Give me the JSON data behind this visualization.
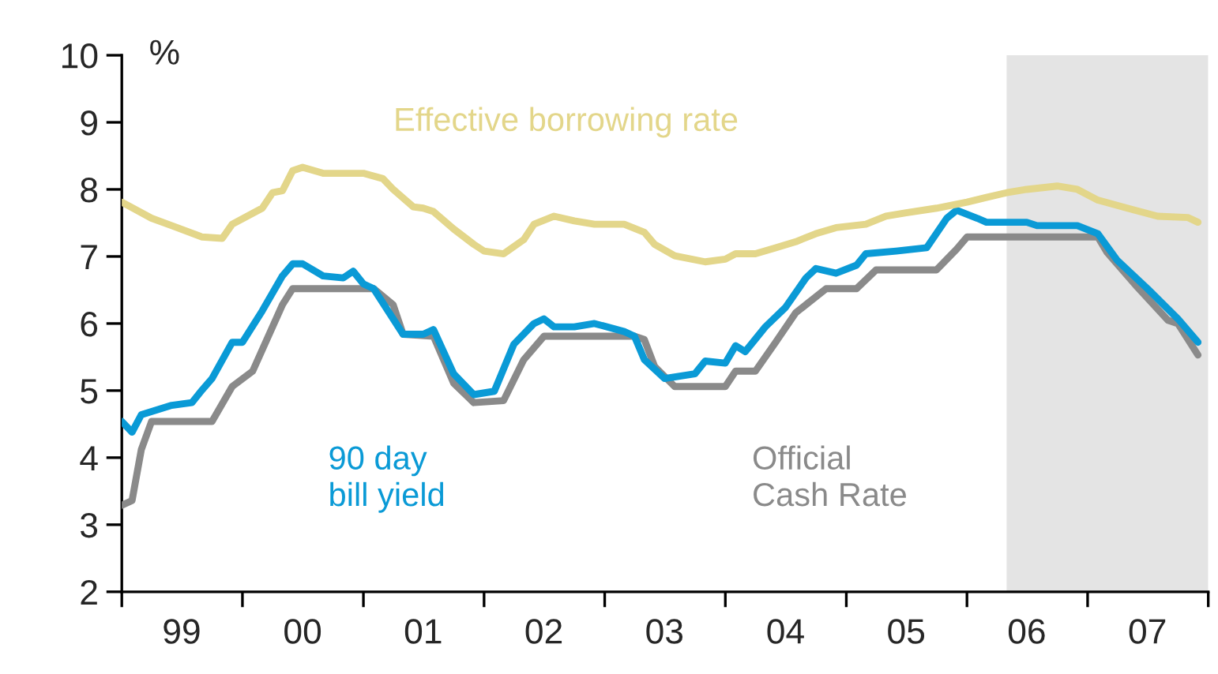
{
  "chart_data": {
    "type": "line",
    "ylabel": "%",
    "xlim": [
      "1999-01",
      "2008-01"
    ],
    "ylim": [
      2,
      10
    ],
    "yticks": [
      2,
      3,
      4,
      5,
      6,
      7,
      8,
      9,
      10
    ],
    "xticks": [
      {
        "value": "1999-01",
        "label": null
      },
      {
        "value": "2000-01",
        "label": null
      },
      {
        "value": "2001-01",
        "label": null
      },
      {
        "value": "2002-01",
        "label": null
      },
      {
        "value": "2003-01",
        "label": null
      },
      {
        "value": "2004-01",
        "label": null
      },
      {
        "value": "2005-01",
        "label": null
      },
      {
        "value": "2006-01",
        "label": null
      },
      {
        "value": "2007-01",
        "label": null
      },
      {
        "value": "2008-01",
        "label": null
      },
      {
        "value": "1999-07",
        "label": "99"
      },
      {
        "value": "2000-07",
        "label": "00"
      },
      {
        "value": "2001-07",
        "label": "01"
      },
      {
        "value": "2002-07",
        "label": "02"
      },
      {
        "value": "2003-07",
        "label": "03"
      },
      {
        "value": "2004-07",
        "label": "04"
      },
      {
        "value": "2005-07",
        "label": "05"
      },
      {
        "value": "2006-07",
        "label": "06"
      },
      {
        "value": "2007-07",
        "label": "07"
      }
    ],
    "grid": false,
    "legend": false,
    "marker": "none",
    "line_style": "solid",
    "bands": [
      {
        "axis": "x",
        "from": "2006-05",
        "to": "2008-01",
        "label": null,
        "color": "#e4e4e4"
      }
    ],
    "series": [
      {
        "name": "Effective borrowing rate",
        "color": "#e3d68a",
        "x": [
          "1999-01",
          "1999-04",
          "1999-06",
          "1999-09",
          "1999-11",
          "1999-12",
          "2000-03",
          "2000-04",
          "2000-05",
          "2000-06",
          "2000-07",
          "2000-09",
          "2001-01",
          "2001-03",
          "2001-04",
          "2001-06",
          "2001-07",
          "2001-08",
          "2001-10",
          "2001-12",
          "2002-01",
          "2002-03",
          "2002-05",
          "2002-06",
          "2002-08",
          "2002-10",
          "2002-12",
          "2003-03",
          "2003-05",
          "2003-06",
          "2003-08",
          "2003-11",
          "2004-01",
          "2004-02",
          "2004-04",
          "2004-06",
          "2004-08",
          "2004-10",
          "2004-12",
          "2005-03",
          "2005-05",
          "2005-07",
          "2005-10",
          "2006-01",
          "2006-03",
          "2006-05",
          "2006-07",
          "2006-10",
          "2006-12",
          "2007-02",
          "2007-05",
          "2007-08",
          "2007-11",
          "2007-12"
        ],
        "values": [
          7.81,
          7.57,
          7.46,
          7.29,
          7.27,
          7.48,
          7.72,
          7.95,
          7.98,
          8.28,
          8.33,
          8.24,
          8.24,
          8.16,
          8.0,
          7.74,
          7.72,
          7.67,
          7.41,
          7.18,
          7.08,
          7.04,
          7.25,
          7.48,
          7.6,
          7.53,
          7.48,
          7.48,
          7.36,
          7.18,
          7.01,
          6.92,
          6.96,
          7.04,
          7.04,
          7.13,
          7.22,
          7.34,
          7.43,
          7.48,
          7.6,
          7.65,
          7.72,
          7.81,
          7.88,
          7.95,
          8.0,
          8.05,
          8.0,
          7.84,
          7.72,
          7.6,
          7.58,
          7.51
        ]
      },
      {
        "name": "90 day\nbill yield",
        "color": "#0a9ad6",
        "x": [
          "1999-01",
          "1999-02",
          "1999-03",
          "1999-06",
          "1999-08",
          "1999-09",
          "1999-10",
          "1999-12",
          "2000-01",
          "2000-03",
          "2000-05",
          "2000-06",
          "2000-07",
          "2000-09",
          "2000-11",
          "2000-12",
          "2001-01",
          "2001-02",
          "2001-05",
          "2001-07",
          "2001-08",
          "2001-10",
          "2001-12",
          "2002-02",
          "2002-04",
          "2002-06",
          "2002-07",
          "2002-08",
          "2002-10",
          "2002-12",
          "2003-03",
          "2003-04",
          "2003-05",
          "2003-07",
          "2003-10",
          "2003-11",
          "2004-01",
          "2004-02",
          "2004-03",
          "2004-05",
          "2004-07",
          "2004-09",
          "2004-10",
          "2004-12",
          "2005-02",
          "2005-03",
          "2005-06",
          "2005-09",
          "2005-11",
          "2005-12",
          "2006-02",
          "2006-03",
          "2006-07",
          "2006-08",
          "2006-12",
          "2007-02",
          "2007-04",
          "2007-07",
          "2007-10",
          "2007-12"
        ],
        "values": [
          4.54,
          4.38,
          4.64,
          4.78,
          4.82,
          5.01,
          5.18,
          5.72,
          5.72,
          6.19,
          6.71,
          6.89,
          6.89,
          6.71,
          6.68,
          6.78,
          6.59,
          6.52,
          5.84,
          5.84,
          5.91,
          5.25,
          4.94,
          4.99,
          5.69,
          6.0,
          6.07,
          5.95,
          5.95,
          6.0,
          5.88,
          5.81,
          5.46,
          5.18,
          5.25,
          5.44,
          5.41,
          5.67,
          5.58,
          5.95,
          6.24,
          6.68,
          6.82,
          6.75,
          6.87,
          7.04,
          7.08,
          7.13,
          7.57,
          7.69,
          7.57,
          7.51,
          7.51,
          7.46,
          7.46,
          7.34,
          6.94,
          6.52,
          6.07,
          5.72
        ]
      },
      {
        "name": "Official\nCash Rate",
        "color": "#8a8a8a",
        "x": [
          "1999-01",
          "1999-02",
          "1999-03",
          "1999-04",
          "1999-10",
          "1999-12",
          "2000-02",
          "2000-05",
          "2000-06",
          "2001-02",
          "2001-04",
          "2001-05",
          "2001-08",
          "2001-10",
          "2001-12",
          "2002-03",
          "2002-05",
          "2002-07",
          "2003-04",
          "2003-05",
          "2003-06",
          "2003-08",
          "2004-01",
          "2004-02",
          "2004-04",
          "2004-06",
          "2004-08",
          "2004-11",
          "2005-02",
          "2005-04",
          "2005-10",
          "2005-12",
          "2006-01",
          "2007-02",
          "2007-03",
          "2007-06",
          "2007-09",
          "2007-10",
          "2007-12"
        ],
        "values": [
          3.29,
          3.36,
          4.12,
          4.54,
          4.54,
          5.06,
          5.29,
          6.28,
          6.52,
          6.52,
          6.28,
          5.84,
          5.81,
          5.11,
          4.82,
          4.85,
          5.46,
          5.81,
          5.81,
          5.76,
          5.36,
          5.06,
          5.06,
          5.29,
          5.29,
          5.72,
          6.16,
          6.52,
          6.52,
          6.8,
          6.8,
          7.11,
          7.29,
          7.29,
          7.06,
          6.54,
          6.05,
          6.0,
          5.53
        ]
      }
    ]
  }
}
